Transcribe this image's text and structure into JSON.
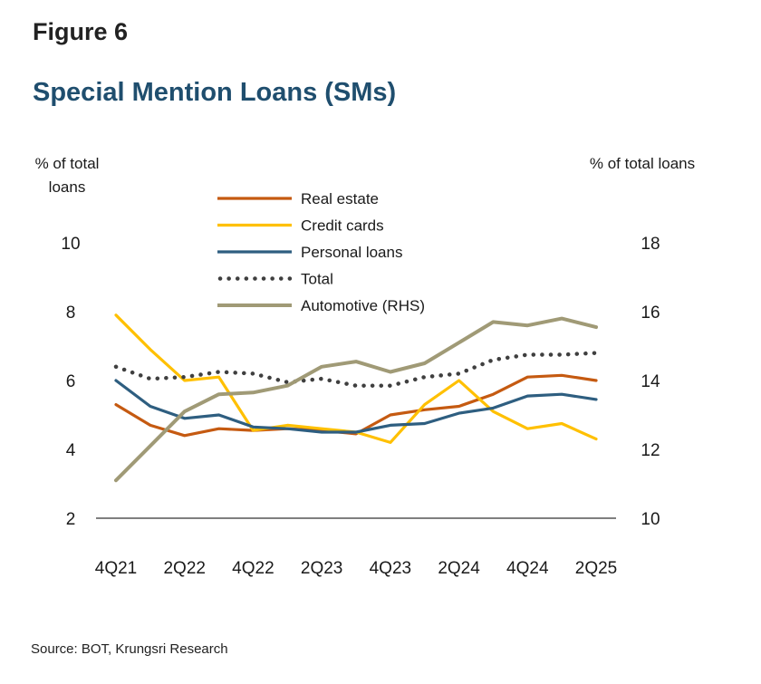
{
  "figure_label": "Figure 6",
  "source": "Source: BOT, Krungsri Research",
  "chart_data": {
    "type": "line",
    "title": "Special Mention Loans (SMs)",
    "ylabel": "% of total loans",
    "y2label": "% of total loans",
    "ylim": [
      2,
      10
    ],
    "y2lim": [
      10,
      18
    ],
    "yticks": [
      2,
      4,
      6,
      8,
      10
    ],
    "y2ticks": [
      10,
      12,
      14,
      16,
      18
    ],
    "categories": [
      "4Q21",
      "1Q22",
      "2Q22",
      "3Q22",
      "4Q22",
      "1Q23",
      "2Q23",
      "3Q23",
      "4Q23",
      "1Q24",
      "2Q24",
      "3Q24",
      "4Q24",
      "1Q25",
      "2Q25"
    ],
    "xtick_labels": [
      "4Q21",
      "2Q22",
      "4Q22",
      "2Q23",
      "4Q23",
      "2Q24",
      "4Q24",
      "2Q25"
    ],
    "legend_position": "top-center",
    "series": [
      {
        "name": "Real estate",
        "axis": "left",
        "style": "solid",
        "color": "#c55a11",
        "values": [
          5.3,
          4.7,
          4.4,
          4.6,
          4.55,
          4.6,
          4.55,
          4.45,
          5.0,
          5.15,
          5.25,
          5.6,
          6.1,
          6.15,
          6.0
        ]
      },
      {
        "name": "Credit cards",
        "axis": "left",
        "style": "solid",
        "color": "#ffc000",
        "values": [
          7.9,
          6.9,
          6.0,
          6.1,
          4.55,
          4.7,
          4.6,
          4.5,
          4.2,
          5.3,
          6.0,
          5.1,
          4.6,
          4.75,
          4.3
        ]
      },
      {
        "name": "Personal loans",
        "axis": "left",
        "style": "solid",
        "color": "#2e5e80",
        "values": [
          6.0,
          5.25,
          4.9,
          5.0,
          4.65,
          4.6,
          4.5,
          4.5,
          4.7,
          4.75,
          5.05,
          5.2,
          5.55,
          5.6,
          5.45
        ]
      },
      {
        "name": "Total",
        "axis": "left",
        "style": "dotted",
        "color": "#3f3f3f",
        "values": [
          6.4,
          6.05,
          6.1,
          6.25,
          6.2,
          5.95,
          6.05,
          5.85,
          5.85,
          6.1,
          6.2,
          6.6,
          6.75,
          6.75,
          6.8
        ]
      },
      {
        "name": "Automotive (RHS)",
        "axis": "right",
        "style": "solid",
        "color": "#a09a76",
        "values": [
          11.1,
          12.1,
          13.1,
          13.6,
          13.65,
          13.85,
          14.4,
          14.55,
          14.25,
          14.5,
          15.1,
          15.7,
          15.6,
          15.8,
          15.55
        ]
      }
    ]
  }
}
